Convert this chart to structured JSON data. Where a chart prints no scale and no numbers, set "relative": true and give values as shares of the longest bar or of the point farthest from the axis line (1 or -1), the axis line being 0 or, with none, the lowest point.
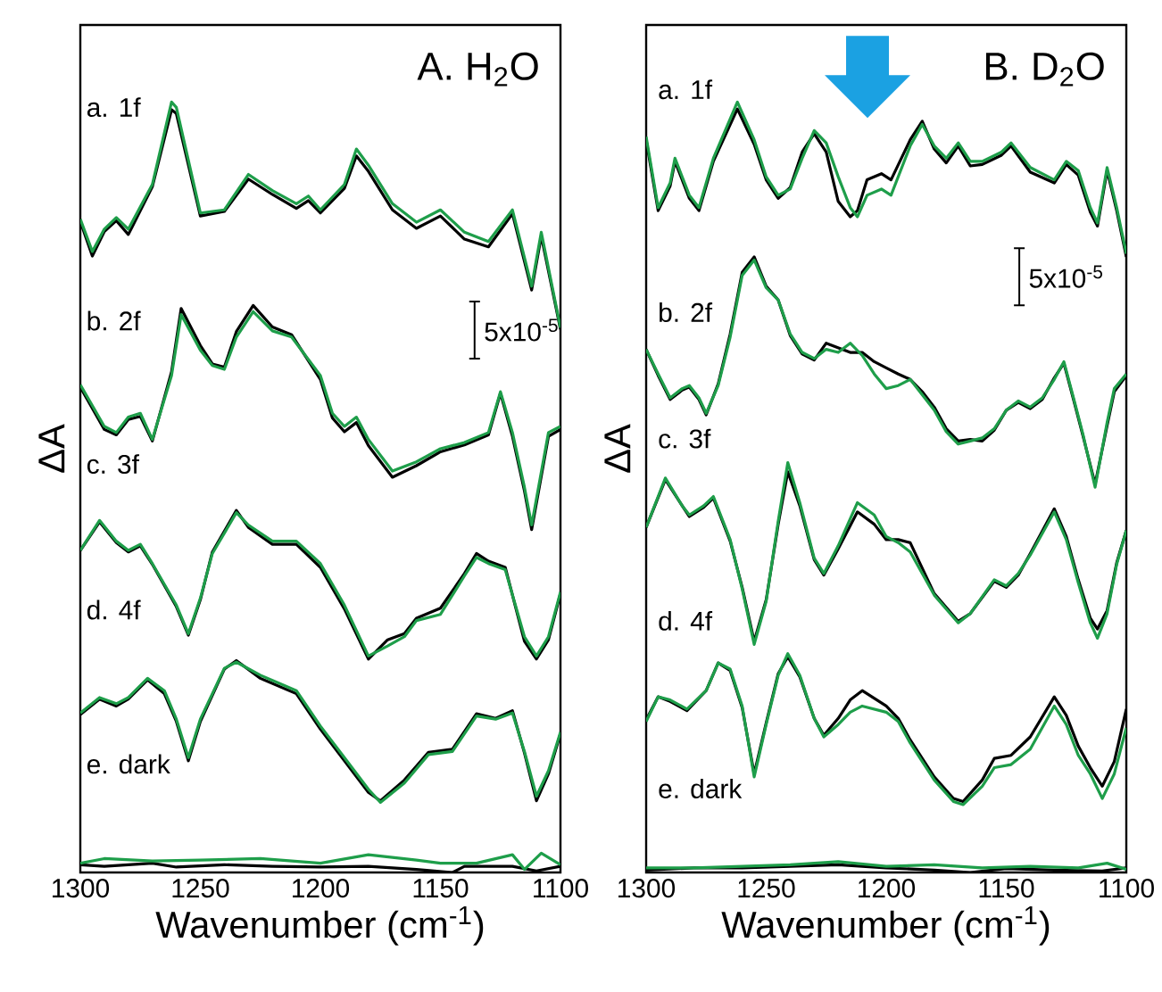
{
  "chart_data": [
    {
      "type": "line",
      "relative": true,
      "title": "A. H$_{2}$O",
      "xlabel": "Wavenumber (cm$^{-1}$)",
      "ylabel": "ΔA",
      "xlim": [
        1300,
        1100
      ],
      "xticks": [
        1300,
        1250,
        1200,
        1150,
        1100
      ],
      "marker": "none",
      "annotations": [
        "a. 1f",
        "b. 2f",
        "c. 3f",
        "d. 4f",
        "e. dark",
        "5x10$^{-5}$"
      ],
      "series": [
        {
          "color": "#000000",
          "x": [
            1300,
            1295,
            1290,
            1285,
            1280,
            1270,
            1262,
            1260,
            1250,
            1240,
            1230,
            1220,
            1210,
            1205,
            1200,
            1190,
            1185,
            1180,
            1170,
            1160,
            1150,
            1140,
            1130,
            1120,
            1112,
            1108,
            1100
          ],
          "values": [
            0.845,
            0.8,
            0.832,
            0.846,
            0.828,
            0.89,
            0.99,
            0.985,
            0.852,
            0.858,
            0.9,
            0.88,
            0.862,
            0.872,
            0.856,
            0.888,
            0.93,
            0.91,
            0.86,
            0.836,
            0.852,
            0.822,
            0.812,
            0.855,
            0.756,
            0.826,
            0.705
          ]
        },
        {
          "color": "#1e9e4a",
          "x": [
            1300,
            1295,
            1290,
            1285,
            1280,
            1270,
            1262,
            1260,
            1250,
            1240,
            1230,
            1220,
            1210,
            1205,
            1200,
            1190,
            1185,
            1180,
            1170,
            1160,
            1150,
            1140,
            1130,
            1120,
            1112,
            1108,
            1100
          ],
          "values": [
            0.848,
            0.806,
            0.835,
            0.85,
            0.835,
            0.893,
            1.0,
            0.993,
            0.856,
            0.86,
            0.906,
            0.885,
            0.868,
            0.878,
            0.86,
            0.893,
            0.939,
            0.918,
            0.868,
            0.844,
            0.86,
            0.831,
            0.819,
            0.86,
            0.761,
            0.831,
            0.707
          ]
        },
        {
          "color": "#000000",
          "x": [
            1300,
            1290,
            1285,
            1280,
            1275,
            1270,
            1262,
            1258,
            1250,
            1245,
            1240,
            1235,
            1228,
            1220,
            1212,
            1200,
            1195,
            1190,
            1185,
            1180,
            1170,
            1160,
            1150,
            1140,
            1130,
            1125,
            1120,
            1115,
            1112,
            1105,
            1100
          ],
          "values": [
            0.63,
            0.575,
            0.568,
            0.588,
            0.592,
            0.56,
            0.65,
            0.732,
            0.684,
            0.66,
            0.656,
            0.702,
            0.736,
            0.708,
            0.698,
            0.64,
            0.59,
            0.572,
            0.584,
            0.554,
            0.513,
            0.528,
            0.546,
            0.555,
            0.568,
            0.622,
            0.566,
            0.495,
            0.445,
            0.566,
            0.575
          ]
        },
        {
          "color": "#1e9e4a",
          "x": [
            1300,
            1290,
            1285,
            1280,
            1275,
            1270,
            1262,
            1258,
            1250,
            1245,
            1240,
            1235,
            1228,
            1220,
            1212,
            1200,
            1195,
            1190,
            1185,
            1180,
            1170,
            1160,
            1150,
            1140,
            1130,
            1125,
            1120,
            1115,
            1112,
            1105,
            1100
          ],
          "values": [
            0.633,
            0.579,
            0.571,
            0.591,
            0.596,
            0.562,
            0.645,
            0.724,
            0.678,
            0.658,
            0.653,
            0.695,
            0.728,
            0.703,
            0.695,
            0.645,
            0.596,
            0.579,
            0.591,
            0.562,
            0.521,
            0.533,
            0.55,
            0.558,
            0.571,
            0.624,
            0.571,
            0.5,
            0.451,
            0.571,
            0.579
          ]
        },
        {
          "color": "#000000",
          "x": [
            1300,
            1292,
            1285,
            1280,
            1275,
            1270,
            1260,
            1255,
            1250,
            1245,
            1235,
            1230,
            1220,
            1210,
            1200,
            1190,
            1180,
            1172,
            1165,
            1160,
            1150,
            1140,
            1135,
            1130,
            1123,
            1115,
            1110,
            1105,
            1100
          ],
          "values": [
            0.418,
            0.455,
            0.428,
            0.416,
            0.424,
            0.4,
            0.345,
            0.308,
            0.354,
            0.416,
            0.47,
            0.448,
            0.426,
            0.426,
            0.396,
            0.342,
            0.277,
            0.302,
            0.31,
            0.33,
            0.343,
            0.388,
            0.414,
            0.404,
            0.396,
            0.3,
            0.277,
            0.302,
            0.362
          ]
        },
        {
          "color": "#1e9e4a",
          "x": [
            1300,
            1292,
            1285,
            1280,
            1275,
            1270,
            1260,
            1255,
            1250,
            1245,
            1235,
            1230,
            1220,
            1210,
            1200,
            1190,
            1180,
            1172,
            1165,
            1160,
            1150,
            1140,
            1135,
            1130,
            1123,
            1115,
            1110,
            1105,
            1100
          ],
          "values": [
            0.418,
            0.457,
            0.43,
            0.418,
            0.426,
            0.401,
            0.347,
            0.31,
            0.356,
            0.414,
            0.467,
            0.451,
            0.43,
            0.43,
            0.401,
            0.347,
            0.281,
            0.294,
            0.306,
            0.327,
            0.335,
            0.385,
            0.409,
            0.401,
            0.393,
            0.306,
            0.281,
            0.306,
            0.364
          ]
        },
        {
          "color": "#000000",
          "x": [
            1300,
            1292,
            1285,
            1280,
            1272,
            1265,
            1260,
            1255,
            1250,
            1240,
            1235,
            1225,
            1210,
            1200,
            1190,
            1180,
            1175,
            1165,
            1155,
            1145,
            1135,
            1127,
            1120,
            1115,
            1110,
            1105,
            1100
          ],
          "values": [
            0.205,
            0.225,
            0.216,
            0.225,
            0.25,
            0.232,
            0.196,
            0.145,
            0.196,
            0.264,
            0.275,
            0.252,
            0.232,
            0.186,
            0.145,
            0.104,
            0.093,
            0.12,
            0.156,
            0.16,
            0.206,
            0.2,
            0.21,
            0.155,
            0.093,
            0.128,
            0.18
          ]
        },
        {
          "color": "#1e9e4a",
          "x": [
            1300,
            1292,
            1285,
            1280,
            1272,
            1265,
            1260,
            1255,
            1250,
            1240,
            1235,
            1225,
            1210,
            1200,
            1190,
            1180,
            1175,
            1165,
            1155,
            1145,
            1135,
            1127,
            1120,
            1115,
            1110,
            1105,
            1100
          ],
          "values": [
            0.207,
            0.227,
            0.219,
            0.227,
            0.252,
            0.236,
            0.199,
            0.149,
            0.199,
            0.265,
            0.273,
            0.256,
            0.236,
            0.19,
            0.149,
            0.108,
            0.091,
            0.116,
            0.153,
            0.157,
            0.203,
            0.199,
            0.207,
            0.157,
            0.099,
            0.132,
            0.182
          ]
        },
        {
          "color": "#000000",
          "x": [
            1300,
            1290,
            1270,
            1260,
            1240,
            1220,
            1200,
            1180,
            1160,
            1145,
            1140,
            1120,
            1110,
            1100
          ],
          "values": [
            0.01,
            0.008,
            0.012,
            0.007,
            0.01,
            0.008,
            0.007,
            0.008,
            0.004,
            0.0,
            0.008,
            0.008,
            0.002,
            0.008
          ]
        },
        {
          "color": "#1e9e4a",
          "x": [
            1300,
            1290,
            1270,
            1250,
            1225,
            1200,
            1180,
            1160,
            1150,
            1135,
            1120,
            1115,
            1108,
            1100
          ],
          "values": [
            0.012,
            0.018,
            0.015,
            0.016,
            0.018,
            0.012,
            0.023,
            0.016,
            0.012,
            0.012,
            0.023,
            0.004,
            0.025,
            0.01
          ]
        }
      ]
    },
    {
      "type": "line",
      "relative": true,
      "title": "B. D$_{2}$O",
      "xlabel": "Wavenumber (cm$^{-1}$)",
      "ylabel": "ΔA",
      "xlim": [
        1300,
        1100
      ],
      "xticks": [
        1300,
        1250,
        1200,
        1150,
        1100
      ],
      "marker": "none",
      "annotations": [
        "a. 1f",
        "b. 2f",
        "c. 3f",
        "d. 4f",
        "e. dark",
        "5x10$^{-5}$"
      ],
      "series": [
        {
          "color": "#000000",
          "x": [
            1300,
            1295,
            1290,
            1288,
            1282,
            1278,
            1272,
            1262,
            1255,
            1250,
            1245,
            1240,
            1235,
            1230,
            1225,
            1220,
            1215,
            1212,
            1208,
            1202,
            1198,
            1190,
            1185,
            1180,
            1175,
            1170,
            1165,
            1160,
            1152,
            1148,
            1140,
            1130,
            1125,
            1120,
            1115,
            1112,
            1108,
            1104,
            1100
          ],
          "values": [
            0.951,
            0.859,
            0.891,
            0.923,
            0.875,
            0.859,
            0.923,
            0.991,
            0.945,
            0.899,
            0.875,
            0.889,
            0.935,
            0.959,
            0.935,
            0.871,
            0.851,
            0.859,
            0.899,
            0.907,
            0.899,
            0.951,
            0.975,
            0.939,
            0.921,
            0.943,
            0.917,
            0.919,
            0.931,
            0.943,
            0.909,
            0.895,
            0.919,
            0.905,
            0.857,
            0.839,
            0.911,
            0.859,
            0.799
          ]
        },
        {
          "color": "#1e9e4a",
          "x": [
            1300,
            1295,
            1290,
            1288,
            1282,
            1278,
            1272,
            1262,
            1255,
            1250,
            1245,
            1240,
            1235,
            1230,
            1225,
            1220,
            1215,
            1212,
            1208,
            1202,
            1198,
            1190,
            1185,
            1180,
            1175,
            1170,
            1165,
            1160,
            1152,
            1148,
            1140,
            1130,
            1125,
            1120,
            1115,
            1112,
            1108,
            1104,
            1100
          ],
          "values": [
            0.955,
            0.863,
            0.895,
            0.927,
            0.879,
            0.863,
            0.927,
            1.0,
            0.951,
            0.903,
            0.879,
            0.887,
            0.927,
            0.963,
            0.947,
            0.903,
            0.863,
            0.851,
            0.879,
            0.887,
            0.879,
            0.943,
            0.971,
            0.943,
            0.927,
            0.947,
            0.923,
            0.923,
            0.935,
            0.947,
            0.915,
            0.899,
            0.923,
            0.911,
            0.863,
            0.843,
            0.915,
            0.863,
            0.803
          ]
        },
        {
          "color": "#000000",
          "x": [
            1300,
            1295,
            1290,
            1285,
            1282,
            1278,
            1275,
            1270,
            1265,
            1260,
            1255,
            1250,
            1245,
            1240,
            1235,
            1230,
            1225,
            1220,
            1215,
            1210,
            1205,
            1200,
            1195,
            1190,
            1185,
            1180,
            1175,
            1170,
            1165,
            1160,
            1155,
            1150,
            1145,
            1140,
            1135,
            1130,
            1126,
            1122,
            1118,
            1113,
            1108,
            1105,
            1100
          ],
          "values": [
            0.679,
            0.645,
            0.614,
            0.626,
            0.63,
            0.614,
            0.594,
            0.634,
            0.699,
            0.779,
            0.799,
            0.761,
            0.743,
            0.697,
            0.673,
            0.665,
            0.687,
            0.681,
            0.675,
            0.675,
            0.663,
            0.655,
            0.647,
            0.64,
            0.624,
            0.604,
            0.576,
            0.56,
            0.562,
            0.56,
            0.574,
            0.6,
            0.61,
            0.602,
            0.614,
            0.642,
            0.661,
            0.614,
            0.566,
            0.504,
            0.58,
            0.624,
            0.645
          ]
        },
        {
          "color": "#1e9e4a",
          "x": [
            1300,
            1295,
            1290,
            1285,
            1282,
            1278,
            1275,
            1270,
            1265,
            1260,
            1255,
            1250,
            1245,
            1240,
            1235,
            1230,
            1225,
            1220,
            1215,
            1210,
            1205,
            1200,
            1195,
            1190,
            1185,
            1180,
            1175,
            1170,
            1165,
            1160,
            1155,
            1150,
            1145,
            1140,
            1135,
            1130,
            1126,
            1122,
            1118,
            1113,
            1108,
            1105,
            1100
          ],
          "values": [
            0.679,
            0.647,
            0.616,
            0.628,
            0.632,
            0.616,
            0.596,
            0.632,
            0.695,
            0.775,
            0.795,
            0.759,
            0.743,
            0.699,
            0.675,
            0.667,
            0.679,
            0.675,
            0.687,
            0.671,
            0.647,
            0.628,
            0.632,
            0.64,
            0.62,
            0.6,
            0.572,
            0.556,
            0.56,
            0.564,
            0.576,
            0.6,
            0.612,
            0.604,
            0.616,
            0.64,
            0.663,
            0.616,
            0.568,
            0.5,
            0.584,
            0.628,
            0.647
          ]
        },
        {
          "color": "#000000",
          "x": [
            1300,
            1292,
            1285,
            1282,
            1276,
            1272,
            1265,
            1260,
            1255,
            1250,
            1245,
            1241,
            1236,
            1230,
            1226,
            1220,
            1212,
            1205,
            1200,
            1195,
            1190,
            1180,
            1170,
            1165,
            1155,
            1150,
            1145,
            1140,
            1130,
            1125,
            1120,
            1115,
            1112,
            1108,
            1104,
            1100
          ],
          "values": [
            0.448,
            0.51,
            0.476,
            0.462,
            0.474,
            0.486,
            0.43,
            0.37,
            0.3,
            0.354,
            0.452,
            0.52,
            0.476,
            0.406,
            0.386,
            0.42,
            0.468,
            0.452,
            0.432,
            0.432,
            0.428,
            0.362,
            0.326,
            0.336,
            0.378,
            0.37,
            0.386,
            0.414,
            0.472,
            0.436,
            0.38,
            0.33,
            0.316,
            0.34,
            0.402,
            0.444
          ]
        },
        {
          "color": "#1e9e4a",
          "x": [
            1300,
            1292,
            1285,
            1282,
            1276,
            1272,
            1265,
            1260,
            1255,
            1250,
            1245,
            1241,
            1236,
            1230,
            1226,
            1220,
            1212,
            1205,
            1200,
            1195,
            1190,
            1180,
            1170,
            1165,
            1155,
            1150,
            1145,
            1140,
            1130,
            1125,
            1120,
            1115,
            1112,
            1108,
            1104,
            1100
          ],
          "values": [
            0.448,
            0.512,
            0.476,
            0.464,
            0.476,
            0.488,
            0.432,
            0.368,
            0.296,
            0.352,
            0.456,
            0.532,
            0.48,
            0.408,
            0.388,
            0.424,
            0.48,
            0.464,
            0.436,
            0.428,
            0.416,
            0.36,
            0.324,
            0.336,
            0.38,
            0.372,
            0.388,
            0.412,
            0.468,
            0.432,
            0.376,
            0.324,
            0.304,
            0.336,
            0.4,
            0.444
          ]
        },
        {
          "color": "#000000",
          "x": [
            1300,
            1295,
            1290,
            1283,
            1275,
            1270,
            1265,
            1260,
            1255,
            1250,
            1245,
            1241,
            1236,
            1230,
            1226,
            1220,
            1215,
            1210,
            1200,
            1195,
            1190,
            1180,
            1172,
            1168,
            1160,
            1155,
            1148,
            1140,
            1130,
            1125,
            1120,
            1115,
            1110,
            1105,
            1100
          ],
          "values": [
            0.198,
            0.228,
            0.222,
            0.21,
            0.236,
            0.272,
            0.262,
            0.214,
            0.128,
            0.194,
            0.258,
            0.28,
            0.254,
            0.2,
            0.178,
            0.2,
            0.224,
            0.236,
            0.216,
            0.2,
            0.172,
            0.124,
            0.096,
            0.092,
            0.12,
            0.148,
            0.152,
            0.176,
            0.228,
            0.204,
            0.164,
            0.136,
            0.112,
            0.144,
            0.212
          ]
        },
        {
          "color": "#1e9e4a",
          "x": [
            1300,
            1295,
            1290,
            1283,
            1275,
            1270,
            1265,
            1260,
            1255,
            1250,
            1245,
            1241,
            1236,
            1230,
            1226,
            1220,
            1215,
            1210,
            1200,
            1195,
            1190,
            1180,
            1172,
            1168,
            1160,
            1155,
            1148,
            1140,
            1130,
            1125,
            1120,
            1115,
            1110,
            1105,
            1100
          ],
          "values": [
            0.196,
            0.228,
            0.224,
            0.212,
            0.236,
            0.272,
            0.264,
            0.216,
            0.124,
            0.192,
            0.256,
            0.284,
            0.256,
            0.2,
            0.176,
            0.192,
            0.208,
            0.216,
            0.208,
            0.196,
            0.168,
            0.12,
            0.092,
            0.088,
            0.112,
            0.136,
            0.14,
            0.16,
            0.216,
            0.192,
            0.152,
            0.128,
            0.096,
            0.128,
            0.188
          ]
        },
        {
          "color": "#000000",
          "x": [
            1300,
            1280,
            1260,
            1240,
            1220,
            1200,
            1180,
            1165,
            1150,
            1130,
            1110,
            1100
          ],
          "values": [
            0.003,
            0.006,
            0.006,
            0.008,
            0.01,
            0.006,
            0.003,
            0.0,
            0.005,
            0.003,
            0.002,
            0.006
          ]
        },
        {
          "color": "#1e9e4a",
          "x": [
            1300,
            1280,
            1260,
            1240,
            1220,
            1200,
            1180,
            1160,
            1140,
            1120,
            1108,
            1100
          ],
          "values": [
            0.006,
            0.006,
            0.008,
            0.01,
            0.014,
            0.008,
            0.01,
            0.006,
            0.008,
            0.006,
            0.012,
            0.004
          ]
        }
      ]
    }
  ]
}
